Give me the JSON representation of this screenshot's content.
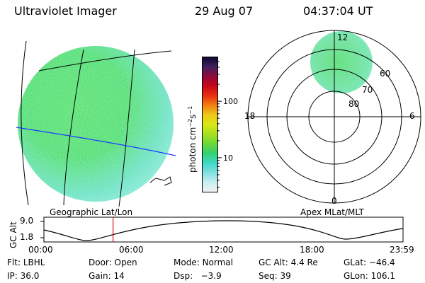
{
  "header": {
    "instrument": "Ultraviolet Imager",
    "date": "29 Aug 07",
    "time": "04:37:04 UT"
  },
  "colorbar": {
    "unit_prefix": "photon cm",
    "unit_exp1": "−2",
    "unit_mid": "s",
    "unit_exp2": "−1",
    "ticks": [
      {
        "value": "100",
        "pos": 100
      },
      {
        "value": "10",
        "pos": 10
      }
    ],
    "colors": [
      "#f2f2f2",
      "#c8eef0",
      "#7fe0e0",
      "#40d8c8",
      "#36d070",
      "#6cd83a",
      "#a8e020",
      "#d8e818",
      "#f0c818",
      "#f08010",
      "#e83010",
      "#c80818",
      "#900838",
      "#402060",
      "#100830"
    ]
  },
  "geo_panel": {
    "caption": "Geographic Lat/Lon"
  },
  "polar_panel": {
    "caption": "Apex MLat/MLT",
    "mlt_labels": [
      "12",
      "18",
      "6",
      "0"
    ],
    "mlat_labels": [
      "60",
      "70",
      "80"
    ]
  },
  "altitude_plot": {
    "ylabel": "GC Alt",
    "yticks": [
      "9.0",
      "1.8"
    ],
    "xticks": [
      "00:00",
      "06:00",
      "12:00",
      "18:00",
      "23:59"
    ],
    "current_time_hours": 4.62
  },
  "info": {
    "filter_label": "Flt:",
    "filter": "LBHL",
    "door_label": "Door:",
    "door": "Open",
    "mode_label": "Mode:",
    "mode": "Normal",
    "gcalt_label": "GC Alt:",
    "gcalt": "4.4 Re",
    "glat_label": "GLat:",
    "glat": "−46.4",
    "ip_label": "IP:",
    "ip": "36.0",
    "gain_label": "Gain:",
    "gain": "14",
    "dsp_label": "Dsp:",
    "dsp": "−3.9",
    "seq_label": "Seq:",
    "seq": "39",
    "glon_label": "GLon:",
    "glon": "106.1"
  }
}
